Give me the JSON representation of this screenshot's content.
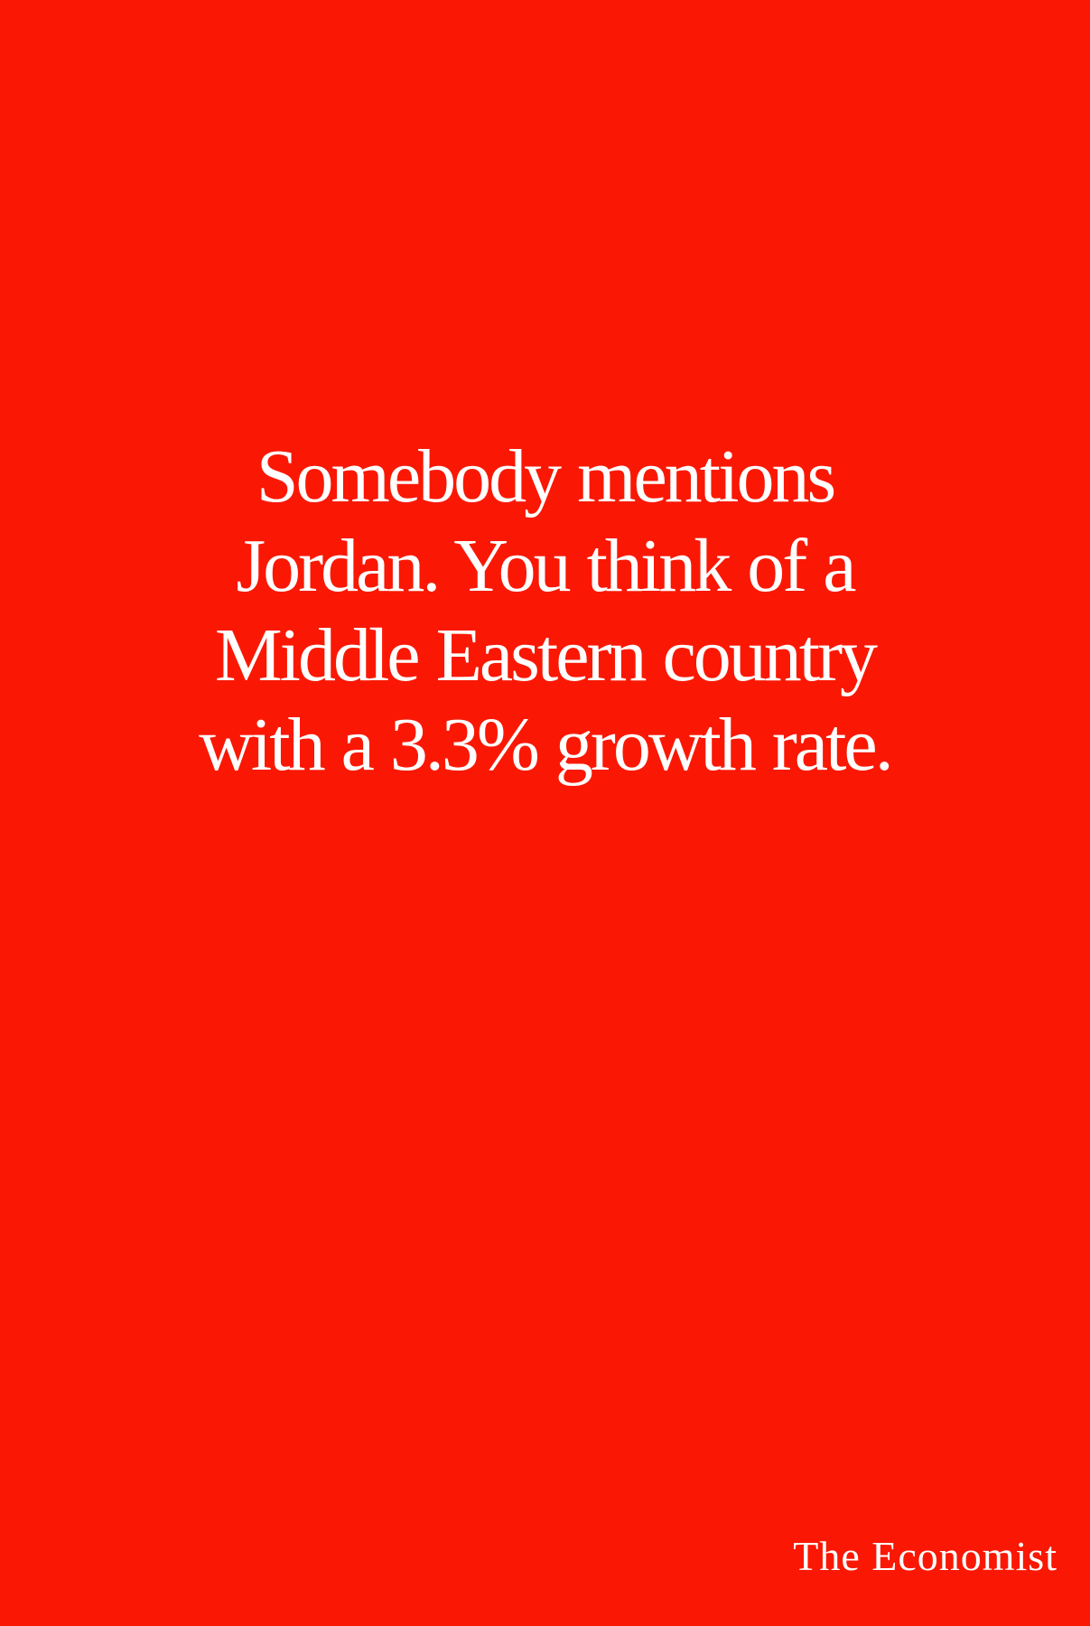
{
  "poster": {
    "background_color": "#fa1804",
    "text_color": "#ffffff",
    "headline_lines": [
      "Somebody mentions",
      "Jordan. You think of a",
      "Middle Eastern country",
      "with a 3.3% growth rate."
    ],
    "brand": "The Economist"
  }
}
